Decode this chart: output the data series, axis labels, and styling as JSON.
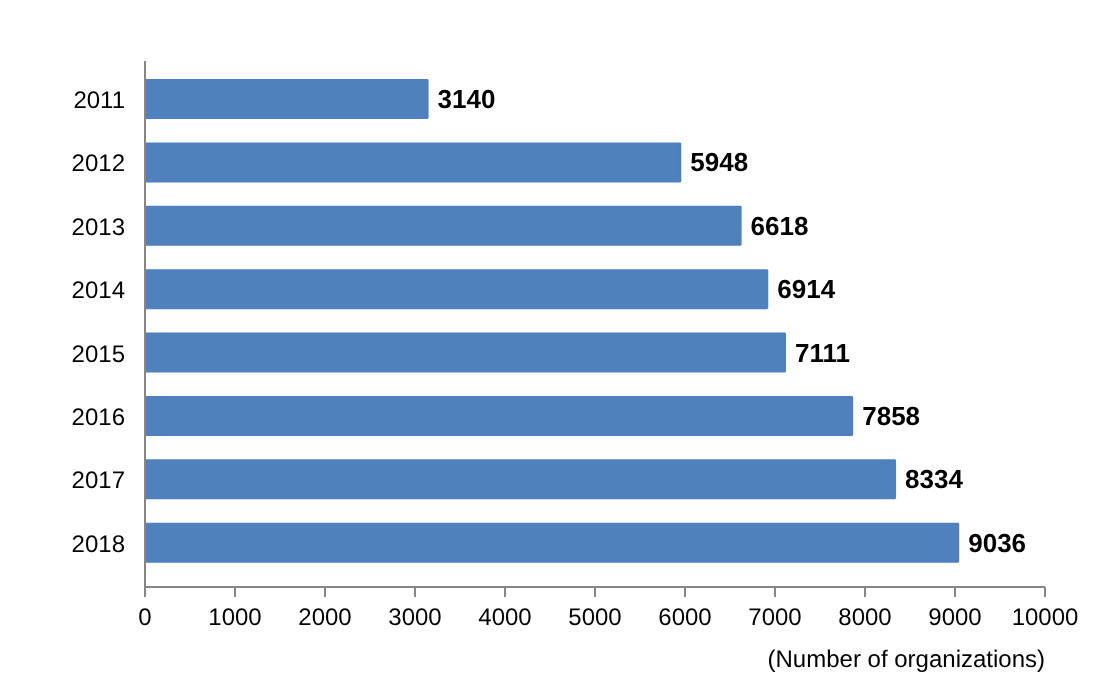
{
  "chart_data": {
    "type": "bar",
    "orientation": "horizontal",
    "xlabel": "(Number of organizations)",
    "categories": [
      "2011",
      "2012",
      "2013",
      "2014",
      "2015",
      "2016",
      "2017",
      "2018"
    ],
    "values": [
      3140,
      5948,
      6618,
      6914,
      7111,
      7858,
      8334,
      9036
    ],
    "color": "#4f81bd",
    "xlim": [
      0,
      10000
    ],
    "xticks": [
      0,
      1000,
      2000,
      3000,
      4000,
      5000,
      6000,
      7000,
      8000,
      9000,
      10000
    ],
    "data_labels": true,
    "grid": false
  }
}
